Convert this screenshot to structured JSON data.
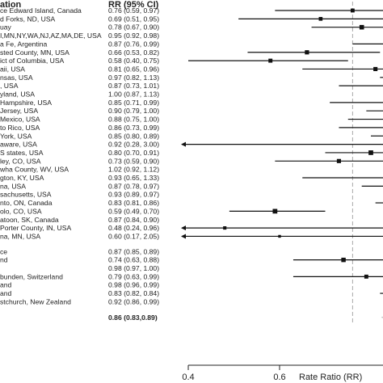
{
  "chart_data": {
    "type": "forest",
    "title": "",
    "columns": [
      "ation",
      "RR (95% CI)"
    ],
    "xlabel": "Rate Ratio (RR)",
    "x_ticks": [
      "0.4",
      "0.6"
    ],
    "x_ticks_values": [
      0.4,
      0.6
    ],
    "xlim": [
      0.4,
      0.8
    ],
    "reference_line": 0.76,
    "rows": [
      {
        "location": "ce Edward Island, Canada",
        "rr_text": "0.76 (0.59, 0.97)",
        "rr": 0.76,
        "lo": 0.59,
        "hi": 0.97
      },
      {
        "location": "d Forks, ND, USA",
        "rr_text": "0.69 (0.51, 0.95)",
        "rr": 0.69,
        "lo": 0.51,
        "hi": 0.95
      },
      {
        "location": "uay",
        "rr_text": "0.78 (0.67, 0.90)",
        "rr": 0.78,
        "lo": 0.67,
        "hi": 0.9
      },
      {
        "location": "I,MN,NY,WA,NJ,AZ,MA,DE, USA",
        "rr_text": "0.95 (0.92, 0.98)",
        "rr": 0.95,
        "lo": 0.92,
        "hi": 0.98
      },
      {
        "location": "a Fe, Argentina",
        "rr_text": "0.87 (0.76, 0.99)",
        "rr": 0.87,
        "lo": 0.76,
        "hi": 0.99
      },
      {
        "location": "sted County, MN, USA",
        "rr_text": "0.66 (0.53, 0.82)",
        "rr": 0.66,
        "lo": 0.53,
        "hi": 0.82
      },
      {
        "location": "ict of Columbia, USA",
        "rr_text": "0.58 (0.40, 0.75)",
        "rr": 0.58,
        "lo": 0.4,
        "hi": 0.75
      },
      {
        "location": "aii, USA",
        "rr_text": "0.81 (0.65, 0.96)",
        "rr": 0.81,
        "lo": 0.65,
        "hi": 0.96
      },
      {
        "location": "nsas, USA",
        "rr_text": "0.97 (0.82, 1.13)",
        "rr": 0.97,
        "lo": 0.82,
        "hi": 1.13
      },
      {
        "location": ", USA",
        "rr_text": "0.87 (0.73, 1.01)",
        "rr": 0.87,
        "lo": 0.73,
        "hi": 1.01
      },
      {
        "location": "yland, USA",
        "rr_text": "1.00 (0.87, 1.13)",
        "rr": 1.0,
        "lo": 0.87,
        "hi": 1.13
      },
      {
        "location": "Hampshire, USA",
        "rr_text": "0.85 (0.71, 0.99)",
        "rr": 0.85,
        "lo": 0.71,
        "hi": 0.99
      },
      {
        "location": "Jersey, USA",
        "rr_text": "0.90 (0.79, 1.00)",
        "rr": 0.9,
        "lo": 0.79,
        "hi": 1.0
      },
      {
        "location": "Mexico, USA",
        "rr_text": "0.88 (0.75, 1.00)",
        "rr": 0.88,
        "lo": 0.75,
        "hi": 1.0
      },
      {
        "location": "to Rico, USA",
        "rr_text": "0.86 (0.73, 0.99)",
        "rr": 0.86,
        "lo": 0.73,
        "hi": 0.99
      },
      {
        "location": "York, USA",
        "rr_text": "0.85 (0.80, 0.89)",
        "rr": 0.85,
        "lo": 0.8,
        "hi": 0.89
      },
      {
        "location": "aware, USA",
        "rr_text": "0.92 (0.28, 3.00)",
        "rr": 0.92,
        "lo": 0.28,
        "hi": 3.0
      },
      {
        "location": "S states, USA",
        "rr_text": "0.80 (0.70, 0.91)",
        "rr": 0.8,
        "lo": 0.7,
        "hi": 0.91
      },
      {
        "location": "ley, CO, USA",
        "rr_text": "0.73 (0.59, 0.90)",
        "rr": 0.73,
        "lo": 0.59,
        "hi": 0.9
      },
      {
        "location": "wha County, WV, USA",
        "rr_text": "1.02 (0.92, 1.12)",
        "rr": 1.02,
        "lo": 0.92,
        "hi": 1.12
      },
      {
        "location": "gton, KY, USA",
        "rr_text": "0.93 (0.65, 1.33)",
        "rr": 0.93,
        "lo": 0.65,
        "hi": 1.33
      },
      {
        "location": "na, USA",
        "rr_text": "0.87 (0.78, 0.97)",
        "rr": 0.87,
        "lo": 0.78,
        "hi": 0.97
      },
      {
        "location": "sachusetts, USA",
        "rr_text": "0.93 (0.89, 0.97)",
        "rr": 0.93,
        "lo": 0.89,
        "hi": 0.97
      },
      {
        "location": "nto, ON, Canada",
        "rr_text": "0.83 (0.81, 0.86)",
        "rr": 0.83,
        "lo": 0.81,
        "hi": 0.86
      },
      {
        "location": "olo, CO, USA",
        "rr_text": "0.59 (0.49, 0.70)",
        "rr": 0.59,
        "lo": 0.49,
        "hi": 0.7
      },
      {
        "location": "atoon, SK, Canada",
        "rr_text": "0.87 (0.84, 0.90)",
        "rr": 0.87,
        "lo": 0.84,
        "hi": 0.9
      },
      {
        "location": "Porter County, IN, USA",
        "rr_text": "0.48 (0.24, 0.96)",
        "rr": 0.48,
        "lo": 0.24,
        "hi": 0.96
      },
      {
        "location": "na, MN, USA",
        "rr_text": "0.60 (0.17, 2.05)",
        "rr": 0.6,
        "lo": 0.17,
        "hi": 2.05
      },
      {
        "location": "ce",
        "rr_text": "0.87 (0.85, 0.89)",
        "rr": 0.87,
        "lo": 0.85,
        "hi": 0.89
      },
      {
        "location": "nd",
        "rr_text": "0.74 (0.63, 0.88)",
        "rr": 0.74,
        "lo": 0.63,
        "hi": 0.88
      },
      {
        "location": "",
        "rr_text": "0.98 (0.97, 1.00)",
        "rr": 0.98,
        "lo": 0.97,
        "hi": 1.0
      },
      {
        "location": "bunden, Switzerland",
        "rr_text": "0.79 (0.63, 0.99)",
        "rr": 0.79,
        "lo": 0.63,
        "hi": 0.99
      },
      {
        "location": "and",
        "rr_text": "0.98 (0.96, 0.99)",
        "rr": 0.98,
        "lo": 0.96,
        "hi": 0.99
      },
      {
        "location": "and",
        "rr_text": "0.83 (0.82, 0.84)",
        "rr": 0.83,
        "lo": 0.82,
        "hi": 0.84
      },
      {
        "location": "stchurch, New Zealand",
        "rr_text": "0.92 (0.86, 0.99)",
        "rr": 0.92,
        "lo": 0.86,
        "hi": 0.99
      }
    ],
    "overall": {
      "rr_text": "0.86 (0.83,0.89)",
      "rr": 0.86,
      "lo": 0.83,
      "hi": 0.89
    }
  }
}
